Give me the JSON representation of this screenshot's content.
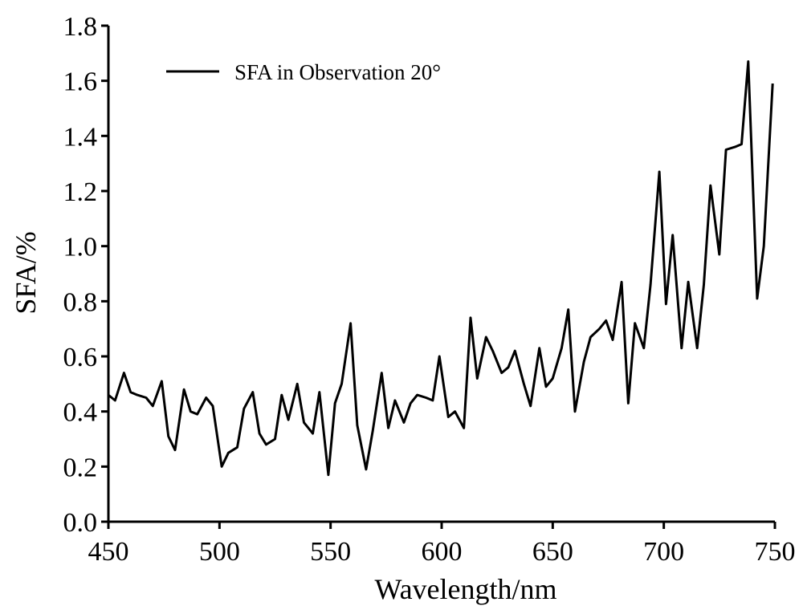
{
  "chart_data": {
    "type": "line",
    "xlabel": "Wavelength/nm",
    "ylabel": "SFA/%",
    "xlim": [
      450,
      750
    ],
    "ylim": [
      0.0,
      1.8
    ],
    "x_ticks": [
      "450",
      "500",
      "550",
      "600",
      "650",
      "700",
      "750"
    ],
    "y_ticks": [
      "0.0",
      "0.2",
      "0.4",
      "0.6",
      "0.8",
      "1.0",
      "1.2",
      "1.4",
      "1.6",
      "1.8"
    ],
    "grid": false,
    "legend_position": "top-left",
    "line_color": "#000000",
    "series": [
      {
        "name": "SFA in Observation 20°",
        "x": [
          450,
          453,
          457,
          460,
          463,
          467,
          470,
          474,
          477,
          480,
          484,
          487,
          490,
          494,
          497,
          501,
          504,
          508,
          511,
          515,
          518,
          521,
          525,
          528,
          531,
          535,
          538,
          542,
          545,
          549,
          552,
          555,
          559,
          562,
          566,
          569,
          573,
          576,
          579,
          583,
          586,
          589,
          593,
          596,
          599,
          603,
          606,
          610,
          613,
          616,
          620,
          623,
          627,
          630,
          633,
          637,
          640,
          644,
          647,
          650,
          654,
          657,
          660,
          664,
          667,
          671,
          674,
          677,
          681,
          684,
          687,
          691,
          694,
          698,
          701,
          704,
          708,
          711,
          715,
          718,
          721,
          725,
          728,
          732,
          735,
          738,
          742,
          745,
          749
        ],
        "values": [
          0.46,
          0.44,
          0.54,
          0.47,
          0.46,
          0.45,
          0.42,
          0.51,
          0.31,
          0.26,
          0.48,
          0.4,
          0.39,
          0.45,
          0.42,
          0.2,
          0.25,
          0.27,
          0.41,
          0.47,
          0.32,
          0.28,
          0.3,
          0.46,
          0.37,
          0.5,
          0.36,
          0.32,
          0.47,
          0.17,
          0.43,
          0.5,
          0.72,
          0.35,
          0.19,
          0.33,
          0.54,
          0.34,
          0.44,
          0.36,
          0.43,
          0.46,
          0.45,
          0.44,
          0.6,
          0.38,
          0.4,
          0.34,
          0.74,
          0.52,
          0.67,
          0.62,
          0.54,
          0.56,
          0.62,
          0.5,
          0.42,
          0.63,
          0.49,
          0.52,
          0.63,
          0.77,
          0.4,
          0.58,
          0.67,
          0.7,
          0.73,
          0.66,
          0.87,
          0.43,
          0.72,
          0.63,
          0.86,
          1.27,
          0.79,
          1.04,
          0.63,
          0.87,
          0.63,
          0.86,
          1.22,
          0.97,
          1.35,
          1.36,
          1.37,
          1.67,
          0.81,
          1.0,
          1.59
        ]
      }
    ]
  }
}
